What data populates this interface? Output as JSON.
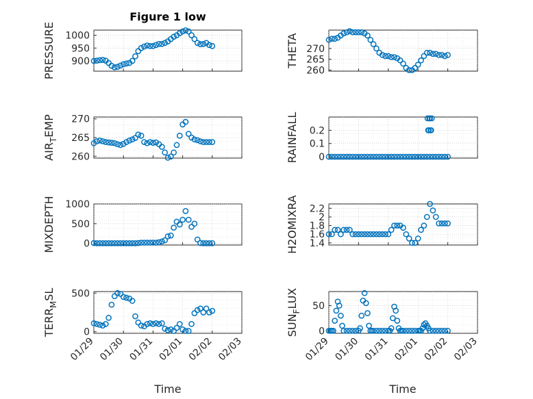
{
  "figure": {
    "title": "Figure 1 low",
    "xlabel": "Time",
    "marker_color": "#0072bd"
  },
  "chart_data": [
    {
      "type": "scatter",
      "name": "PRESSURE",
      "ylabel": "PRESSURE",
      "ylim": [
        860,
        1020
      ],
      "yticks": [
        900,
        950,
        1000
      ],
      "ytick_labels": [
        "900",
        "950",
        "1000"
      ],
      "xlim": [
        0,
        5
      ],
      "xtick_labels": [],
      "grid": true,
      "x": [
        0.0,
        0.1,
        0.2,
        0.3,
        0.4,
        0.5,
        0.6,
        0.7,
        0.8,
        0.9,
        1.0,
        1.1,
        1.2,
        1.3,
        1.4,
        1.5,
        1.6,
        1.7,
        1.8,
        1.9,
        2.0,
        2.1,
        2.2,
        2.3,
        2.4,
        2.5,
        2.6,
        2.7,
        2.8,
        2.9,
        3.0,
        3.1,
        3.2,
        3.3,
        3.4,
        3.5,
        3.6,
        3.7,
        3.8,
        3.9,
        4.0
      ],
      "y": [
        900,
        901,
        903,
        904,
        901,
        892,
        881,
        875,
        877,
        882,
        887,
        890,
        892,
        900,
        918,
        938,
        950,
        956,
        960,
        958,
        958,
        962,
        966,
        966,
        970,
        976,
        985,
        994,
        1000,
        1008,
        1015,
        1019,
        1015,
        1000,
        985,
        970,
        965,
        966,
        970,
        962,
        958
      ]
    },
    {
      "type": "scatter",
      "name": "THETA",
      "ylabel": "THETA",
      "ylim": [
        259.5,
        278.5
      ],
      "yticks": [
        260,
        265,
        270
      ],
      "ytick_labels": [
        "260",
        "265",
        "270"
      ],
      "xlim": [
        0,
        5
      ],
      "xtick_labels": [],
      "grid": true,
      "x": [
        0.0,
        0.1,
        0.2,
        0.3,
        0.4,
        0.5,
        0.6,
        0.7,
        0.8,
        0.9,
        1.0,
        1.1,
        1.2,
        1.3,
        1.4,
        1.5,
        1.6,
        1.7,
        1.8,
        1.9,
        2.0,
        2.1,
        2.2,
        2.3,
        2.4,
        2.5,
        2.6,
        2.7,
        2.8,
        2.9,
        3.0,
        3.1,
        3.2,
        3.3,
        3.4,
        3.5,
        3.6,
        3.7,
        3.8,
        3.9,
        4.0
      ],
      "y": [
        274,
        274.5,
        274.5,
        275,
        276,
        277,
        277.5,
        278,
        277.5,
        277.5,
        277.5,
        277.5,
        277,
        276,
        274,
        272,
        270,
        268,
        267,
        266.5,
        266.5,
        266,
        266,
        265.5,
        264.5,
        263,
        261,
        260,
        260,
        261,
        262.5,
        264.5,
        266.5,
        268,
        268,
        267.5,
        267.5,
        267,
        267,
        266.5,
        267
      ]
    },
    {
      "type": "scatter",
      "name": "AIR_TEMP",
      "ylabel": "AIR_TEMP",
      "ylim": [
        259.5,
        270.5
      ],
      "yticks": [
        260,
        265,
        270
      ],
      "ytick_labels": [
        "260",
        "265",
        "270"
      ],
      "xlim": [
        0,
        5
      ],
      "xtick_labels": [],
      "grid": true,
      "x": [
        0.0,
        0.1,
        0.2,
        0.3,
        0.4,
        0.5,
        0.6,
        0.7,
        0.8,
        0.9,
        1.0,
        1.1,
        1.2,
        1.3,
        1.4,
        1.5,
        1.6,
        1.7,
        1.8,
        1.9,
        2.0,
        2.1,
        2.2,
        2.3,
        2.4,
        2.5,
        2.6,
        2.7,
        2.8,
        2.9,
        3.0,
        3.1,
        3.2,
        3.3,
        3.4,
        3.5,
        3.6,
        3.7,
        3.8,
        3.9,
        4.0
      ],
      "y": [
        263.5,
        264,
        264.2,
        264,
        263.8,
        263.7,
        263.6,
        263.5,
        263.2,
        263,
        263.3,
        263.8,
        264.2,
        264.5,
        264.9,
        265.8,
        265.5,
        263.8,
        263.5,
        263.8,
        263.6,
        263.7,
        263.2,
        262.5,
        261,
        259.6,
        259.9,
        261,
        263,
        265.5,
        268.5,
        269.2,
        266,
        265,
        264.5,
        264.3,
        264,
        263.8,
        263.8,
        263.8,
        263.8
      ]
    },
    {
      "type": "scatter",
      "name": "RAINFALL",
      "ylabel": "RAINFALL",
      "ylim": [
        -0.01,
        0.3
      ],
      "yticks": [
        0,
        0.1,
        0.2
      ],
      "ytick_labels": [
        "0",
        "0.1",
        "0.2"
      ],
      "xlim": [
        0,
        5
      ],
      "xtick_labels": [],
      "grid": true,
      "x": [
        0.0,
        0.1,
        0.2,
        0.3,
        0.4,
        0.5,
        0.6,
        0.7,
        0.8,
        0.9,
        1.0,
        1.1,
        1.2,
        1.3,
        1.4,
        1.5,
        1.6,
        1.7,
        1.8,
        1.9,
        2.0,
        2.1,
        2.2,
        2.3,
        2.4,
        2.5,
        2.6,
        2.7,
        2.8,
        2.9,
        3.0,
        3.1,
        3.2,
        3.3,
        3.4,
        3.5,
        3.6,
        3.7,
        3.8,
        3.9,
        4.0,
        3.32,
        3.34,
        3.36,
        3.38,
        3.4,
        3.42,
        3.44,
        3.46
      ],
      "y": [
        0,
        0,
        0,
        0,
        0,
        0,
        0,
        0,
        0,
        0,
        0,
        0,
        0,
        0,
        0,
        0,
        0,
        0,
        0,
        0,
        0,
        0,
        0,
        0,
        0,
        0,
        0,
        0,
        0,
        0,
        0,
        0,
        0,
        0,
        0,
        0,
        0,
        0,
        0,
        0,
        0,
        0.29,
        0.2,
        0.2,
        0.29,
        0.29,
        0.2,
        0.2,
        0.29
      ]
    },
    {
      "type": "scatter",
      "name": "MIXDEPTH",
      "ylabel": "MIXDEPTH",
      "ylim": [
        -40,
        1000
      ],
      "yticks": [
        0,
        500,
        1000
      ],
      "ytick_labels": [
        "0",
        "500",
        "1000"
      ],
      "xlim": [
        0,
        5
      ],
      "xtick_labels": [],
      "grid": true,
      "x": [
        0.0,
        0.1,
        0.2,
        0.3,
        0.4,
        0.5,
        0.6,
        0.7,
        0.8,
        0.9,
        1.0,
        1.1,
        1.2,
        1.3,
        1.4,
        1.5,
        1.6,
        1.7,
        1.8,
        1.9,
        2.0,
        2.1,
        2.2,
        2.3,
        2.4,
        2.5,
        2.6,
        2.7,
        2.8,
        2.9,
        3.0,
        3.1,
        3.2,
        3.3,
        3.4,
        3.5,
        3.6,
        3.7,
        3.8,
        3.9,
        4.0
      ],
      "y": [
        10,
        5,
        5,
        5,
        5,
        5,
        5,
        5,
        5,
        5,
        5,
        5,
        5,
        5,
        5,
        10,
        20,
        20,
        20,
        20,
        20,
        20,
        30,
        50,
        80,
        180,
        200,
        400,
        550,
        480,
        600,
        820,
        600,
        420,
        500,
        100,
        10,
        5,
        5,
        5,
        5
      ]
    },
    {
      "type": "scatter",
      "name": "H2OMIXRA",
      "ylabel": "H2OMIXRA",
      "ylim": [
        1.35,
        2.3
      ],
      "yticks": [
        1.4,
        1.6,
        1.8,
        2,
        2.2
      ],
      "ytick_labels": [
        "1.4",
        "1.6",
        "1.8",
        "2",
        "2.2"
      ],
      "xlim": [
        0,
        5
      ],
      "xtick_labels": [],
      "grid": true,
      "x": [
        0.0,
        0.1,
        0.2,
        0.3,
        0.4,
        0.5,
        0.6,
        0.7,
        0.8,
        0.9,
        1.0,
        1.1,
        1.2,
        1.3,
        1.4,
        1.5,
        1.6,
        1.7,
        1.8,
        1.9,
        2.0,
        2.1,
        2.2,
        2.3,
        2.4,
        2.5,
        2.6,
        2.7,
        2.8,
        2.9,
        3.0,
        3.1,
        3.2,
        3.3,
        3.4,
        3.5,
        3.6,
        3.7,
        3.8,
        3.9,
        4.0
      ],
      "y": [
        1.6,
        1.6,
        1.7,
        1.7,
        1.6,
        1.7,
        1.7,
        1.7,
        1.6,
        1.6,
        1.6,
        1.6,
        1.6,
        1.6,
        1.6,
        1.6,
        1.6,
        1.6,
        1.6,
        1.6,
        1.6,
        1.7,
        1.8,
        1.8,
        1.8,
        1.75,
        1.6,
        1.5,
        1.4,
        1.4,
        1.5,
        1.7,
        1.8,
        2.0,
        2.3,
        2.15,
        2.0,
        1.85,
        1.85,
        1.85,
        1.85
      ]
    },
    {
      "type": "scatter",
      "name": "TERR_MSL",
      "ylabel": "TERR_MSL",
      "ylim": [
        -20,
        520
      ],
      "yticks": [
        0,
        500
      ],
      "ytick_labels": [
        "0",
        "500"
      ],
      "xlim": [
        0,
        5
      ],
      "xtick_labels": [
        "01/29",
        "01/30",
        "01/31",
        "02/01",
        "02/02",
        "02/03"
      ],
      "grid": true,
      "x": [
        0.0,
        0.1,
        0.2,
        0.3,
        0.4,
        0.5,
        0.6,
        0.7,
        0.8,
        0.9,
        1.0,
        1.1,
        1.2,
        1.3,
        1.4,
        1.5,
        1.6,
        1.7,
        1.8,
        1.9,
        2.0,
        2.1,
        2.2,
        2.3,
        2.4,
        2.5,
        2.6,
        2.7,
        2.8,
        2.9,
        3.0,
        3.1,
        3.2,
        3.3,
        3.4,
        3.5,
        3.6,
        3.7,
        3.8,
        3.9,
        4.0
      ],
      "y": [
        110,
        100,
        90,
        80,
        100,
        180,
        350,
        460,
        500,
        490,
        450,
        440,
        430,
        400,
        200,
        120,
        80,
        70,
        100,
        110,
        100,
        110,
        100,
        110,
        40,
        20,
        30,
        10,
        50,
        100,
        30,
        10,
        10,
        100,
        240,
        280,
        300,
        250,
        300,
        250,
        270
      ]
    },
    {
      "type": "scatter",
      "name": "SUN_FLUX",
      "ylabel": "SUN_FLUX",
      "ylim": [
        -5,
        78
      ],
      "yticks": [
        0,
        50
      ],
      "ytick_labels": [
        "0",
        "50"
      ],
      "xlim": [
        0,
        5
      ],
      "xtick_labels": [
        "01/29",
        "01/30",
        "01/31",
        "02/01",
        "02/02",
        "02/03"
      ],
      "grid": true,
      "x": [
        0.0,
        0.05,
        0.1,
        0.15,
        0.2,
        0.25,
        0.3,
        0.35,
        0.4,
        0.45,
        0.5,
        0.6,
        0.7,
        0.8,
        0.9,
        1.0,
        1.05,
        1.1,
        1.15,
        1.2,
        1.25,
        1.3,
        1.35,
        1.4,
        1.45,
        1.5,
        1.6,
        1.7,
        1.8,
        1.9,
        2.0,
        2.05,
        2.1,
        2.15,
        2.2,
        2.25,
        2.3,
        2.35,
        2.4,
        2.45,
        2.5,
        2.6,
        2.7,
        2.8,
        2.9,
        3.0,
        3.05,
        3.1,
        3.15,
        3.2,
        3.25,
        3.3,
        3.35,
        3.4,
        3.5,
        3.6,
        3.7,
        3.8,
        3.9,
        4.0
      ],
      "y": [
        0,
        0,
        0,
        0,
        20,
        40,
        58,
        50,
        30,
        10,
        0,
        0,
        0,
        0,
        0,
        0,
        5,
        30,
        60,
        75,
        55,
        35,
        10,
        0,
        0,
        0,
        0,
        0,
        0,
        0,
        0,
        0,
        5,
        25,
        48,
        40,
        20,
        5,
        0,
        0,
        0,
        0,
        0,
        0,
        0,
        0,
        0,
        0,
        5,
        12,
        15,
        10,
        5,
        0,
        0,
        0,
        0,
        0,
        0,
        0
      ]
    }
  ]
}
